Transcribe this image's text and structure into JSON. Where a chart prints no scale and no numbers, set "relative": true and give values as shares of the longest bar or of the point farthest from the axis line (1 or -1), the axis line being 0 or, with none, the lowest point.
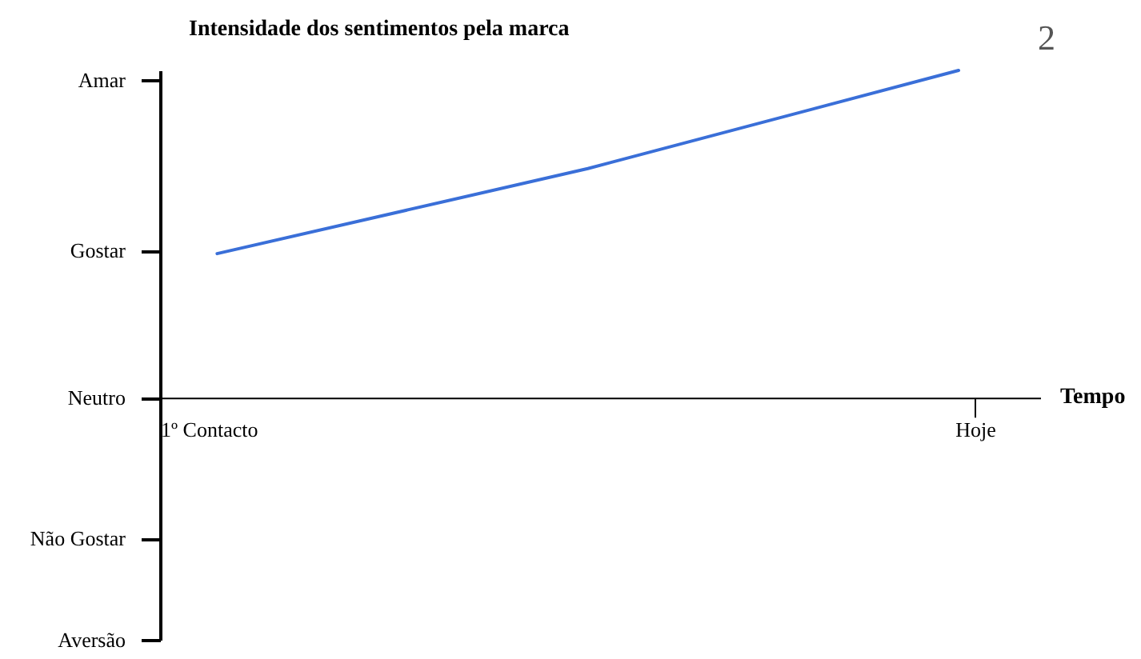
{
  "chart_data": {
    "type": "line",
    "relative": true,
    "title": "Intensidade dos sentimentos pela marca",
    "xlabel": "Tempo",
    "categories": [
      null,
      null,
      null
    ],
    "series": [
      {
        "color": "#3a6fd8",
        "values": [
          0.44,
          0.7,
          1
        ]
      }
    ],
    "annotations": [
      "Amar",
      "Gostar",
      "Neutro",
      "Não Gostar",
      "Aversão",
      "1º Contacto",
      "Hoje",
      "2"
    ]
  }
}
